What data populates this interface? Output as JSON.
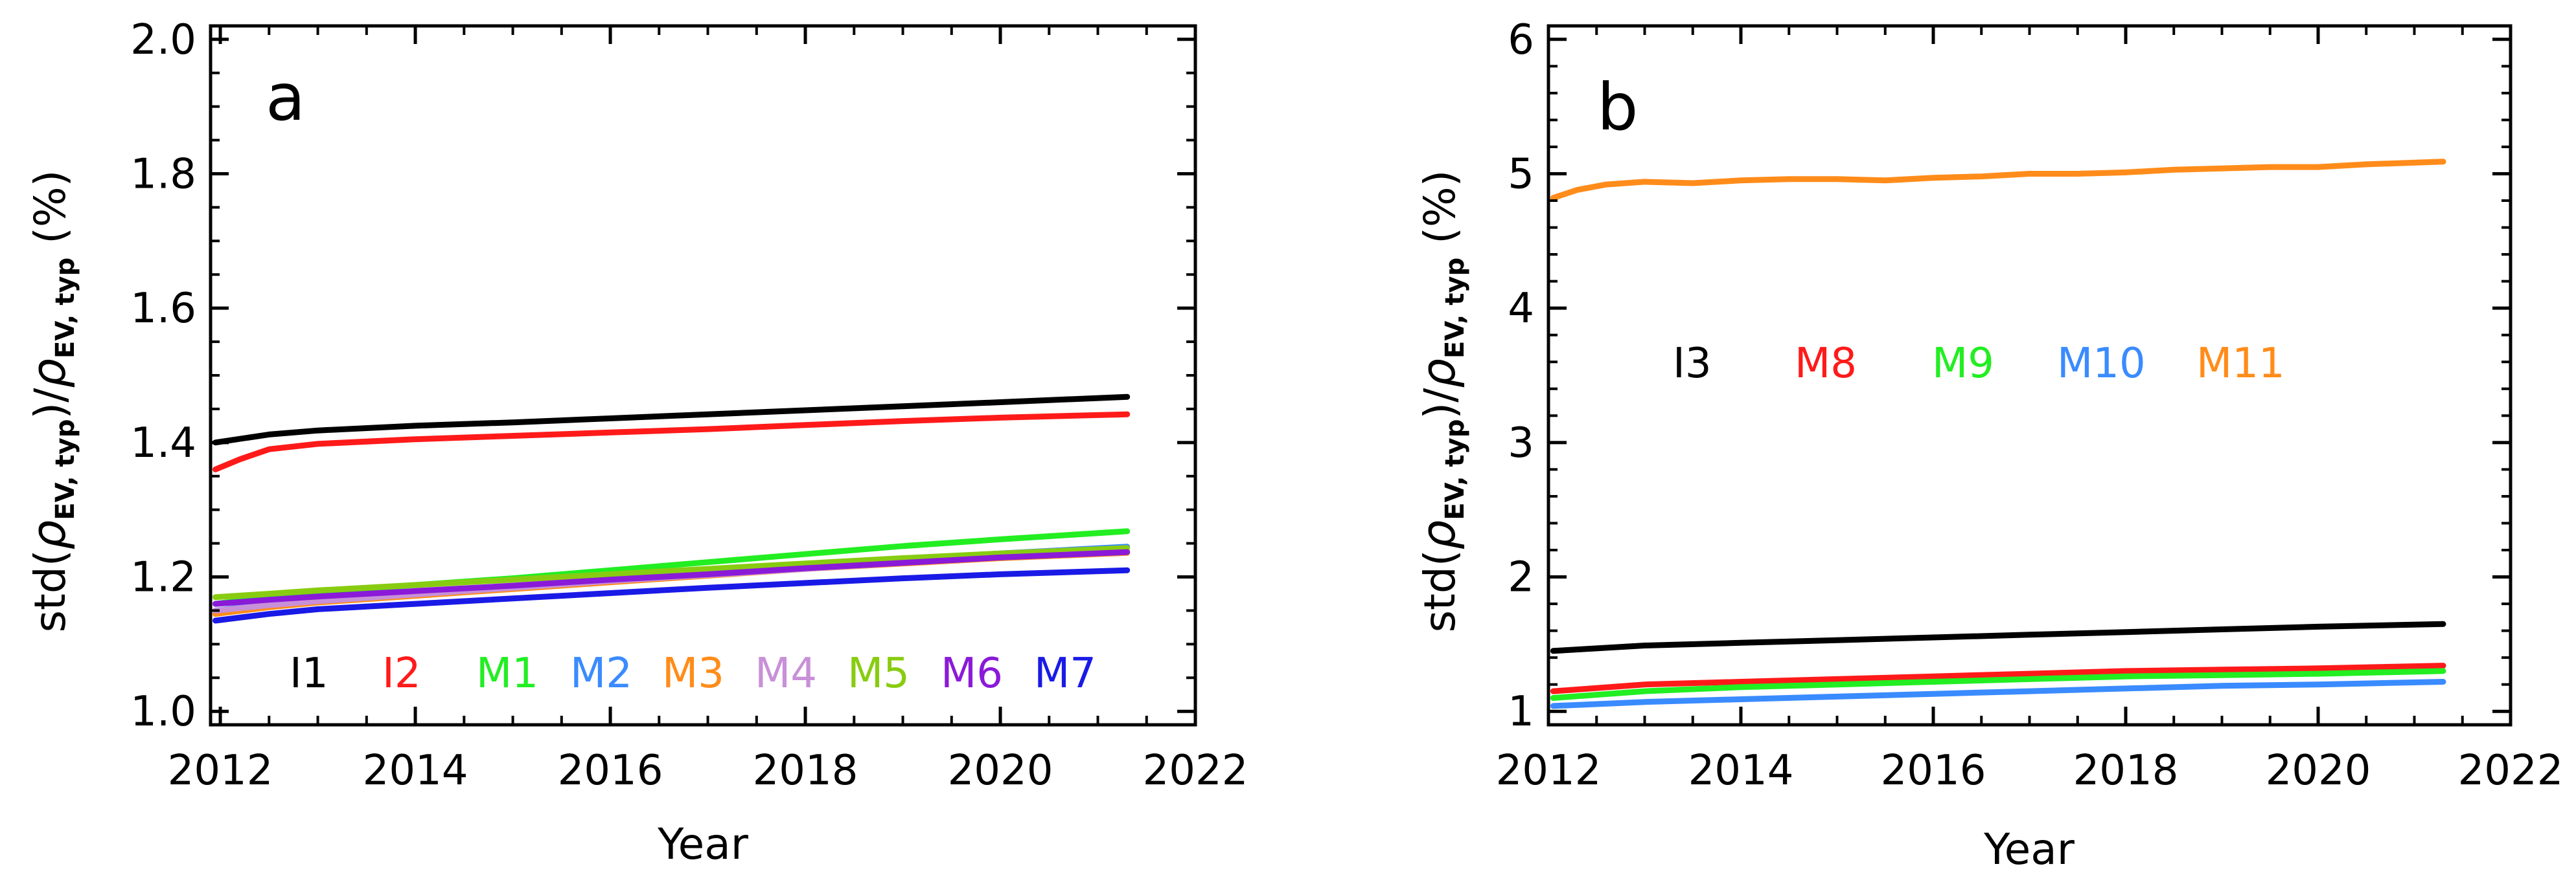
{
  "chart_data": [
    {
      "type": "line",
      "panel_label": "a",
      "xlabel": "Year",
      "ylabel": {
        "prefix": "std(",
        "rho": "ρ",
        "sub": "EV, typ",
        "close": ")/",
        "rho2": "ρ",
        "sub2": "EV, typ",
        "unit": " (%)"
      },
      "xlim": [
        2011.9,
        2022.0
      ],
      "ylim": [
        0.98,
        2.02
      ],
      "xticks": [
        "2012",
        "2014",
        "2016",
        "2018",
        "2020",
        "2022"
      ],
      "yticks": [
        "1.0",
        "1.2",
        "1.4",
        "1.6",
        "1.8",
        "2.0"
      ],
      "series": [
        {
          "name": "I1",
          "color": "#000000",
          "x": [
            2011.95,
            2012.5,
            2013,
            2014,
            2015,
            2016,
            2017,
            2018,
            2019,
            2020,
            2021.3
          ],
          "values": [
            1.4,
            1.412,
            1.418,
            1.425,
            1.43,
            1.436,
            1.442,
            1.448,
            1.454,
            1.46,
            1.468
          ]
        },
        {
          "name": "I2",
          "color": "#ff1a1a",
          "x": [
            2011.95,
            2012.2,
            2012.5,
            2013,
            2014,
            2015,
            2016,
            2017,
            2018,
            2019,
            2020,
            2021.3
          ],
          "values": [
            1.36,
            1.375,
            1.39,
            1.398,
            1.405,
            1.41,
            1.415,
            1.42,
            1.426,
            1.432,
            1.437,
            1.442
          ]
        },
        {
          "name": "M1",
          "color": "#22ee22",
          "x": [
            2011.95,
            2012.5,
            2013,
            2014,
            2015,
            2016,
            2017,
            2018,
            2019,
            2020,
            2021.3
          ],
          "values": [
            1.16,
            1.17,
            1.178,
            1.188,
            1.198,
            1.21,
            1.222,
            1.234,
            1.246,
            1.256,
            1.268
          ]
        },
        {
          "name": "M2",
          "color": "#3a8bff",
          "x": [
            2011.95,
            2012.5,
            2013,
            2014,
            2015,
            2016,
            2017,
            2018,
            2019,
            2020,
            2021.3
          ],
          "values": [
            1.15,
            1.16,
            1.166,
            1.176,
            1.186,
            1.196,
            1.206,
            1.216,
            1.226,
            1.235,
            1.245
          ]
        },
        {
          "name": "M3",
          "color": "#ff8c1a",
          "x": [
            2011.95,
            2012.5,
            2013,
            2014,
            2015,
            2016,
            2017,
            2018,
            2019,
            2020,
            2021.3
          ],
          "values": [
            1.145,
            1.155,
            1.162,
            1.172,
            1.182,
            1.192,
            1.202,
            1.212,
            1.22,
            1.228,
            1.236
          ]
        },
        {
          "name": "M4",
          "color": "#c890d8",
          "x": [
            2011.95,
            2012.5,
            2013,
            2014,
            2015,
            2016,
            2017,
            2018,
            2019,
            2020,
            2021.3
          ],
          "values": [
            1.15,
            1.158,
            1.164,
            1.174,
            1.184,
            1.194,
            1.203,
            1.212,
            1.221,
            1.229,
            1.238
          ]
        },
        {
          "name": "M5",
          "color": "#88cc11",
          "x": [
            2011.95,
            2012.5,
            2013,
            2014,
            2015,
            2016,
            2017,
            2018,
            2019,
            2020,
            2021.3
          ],
          "values": [
            1.17,
            1.175,
            1.18,
            1.188,
            1.196,
            1.204,
            1.212,
            1.22,
            1.228,
            1.235,
            1.243
          ]
        },
        {
          "name": "M6",
          "color": "#8a1ad8",
          "x": [
            2011.95,
            2012.5,
            2013,
            2014,
            2015,
            2016,
            2017,
            2018,
            2019,
            2020,
            2021.3
          ],
          "values": [
            1.16,
            1.166,
            1.171,
            1.179,
            1.187,
            1.196,
            1.204,
            1.213,
            1.221,
            1.229,
            1.237
          ]
        },
        {
          "name": "M7",
          "color": "#1a1ae6",
          "x": [
            2011.95,
            2012.5,
            2013,
            2014,
            2015,
            2016,
            2017,
            2018,
            2019,
            2020,
            2021.3
          ],
          "values": [
            1.135,
            1.145,
            1.152,
            1.16,
            1.168,
            1.176,
            1.184,
            1.191,
            1.198,
            1.204,
            1.21
          ]
        }
      ]
    },
    {
      "type": "line",
      "panel_label": "b",
      "xlabel": "Year",
      "ylabel": {
        "prefix": "std(",
        "rho": "ρ",
        "sub": "EV, typ",
        "close": ")/",
        "rho2": "ρ",
        "sub2": "EV, typ",
        "unit": " (%)"
      },
      "xlim": [
        2012.0,
        2022.0
      ],
      "ylim": [
        0.9,
        6.1
      ],
      "xticks": [
        "2012",
        "2014",
        "2016",
        "2018",
        "2020",
        "2022"
      ],
      "yticks": [
        "1",
        "2",
        "3",
        "4",
        "5",
        "6"
      ],
      "series": [
        {
          "name": "I3",
          "color": "#000000",
          "x": [
            2012.05,
            2013,
            2014,
            2015,
            2016,
            2017,
            2018,
            2019,
            2020,
            2021.3
          ],
          "values": [
            1.45,
            1.49,
            1.51,
            1.53,
            1.55,
            1.57,
            1.59,
            1.61,
            1.63,
            1.65
          ]
        },
        {
          "name": "M8",
          "color": "#ff1a1a",
          "x": [
            2012.05,
            2013,
            2014,
            2015,
            2016,
            2017,
            2018,
            2019,
            2020,
            2021.3
          ],
          "values": [
            1.15,
            1.2,
            1.22,
            1.24,
            1.26,
            1.28,
            1.3,
            1.31,
            1.32,
            1.34
          ]
        },
        {
          "name": "M9",
          "color": "#22ee22",
          "x": [
            2012.05,
            2013,
            2014,
            2015,
            2016,
            2017,
            2018,
            2019,
            2020,
            2021.3
          ],
          "values": [
            1.1,
            1.15,
            1.18,
            1.2,
            1.22,
            1.24,
            1.26,
            1.27,
            1.28,
            1.3
          ]
        },
        {
          "name": "M10",
          "color": "#3a8bff",
          "x": [
            2012.05,
            2013,
            2014,
            2015,
            2016,
            2017,
            2018,
            2019,
            2020,
            2021.3
          ],
          "values": [
            1.04,
            1.07,
            1.09,
            1.11,
            1.13,
            1.15,
            1.17,
            1.19,
            1.2,
            1.22
          ]
        },
        {
          "name": "M11",
          "color": "#ff8c1a",
          "x": [
            2012.05,
            2012.3,
            2012.6,
            2013,
            2013.5,
            2014,
            2014.5,
            2015,
            2015.5,
            2016,
            2016.5,
            2017,
            2017.5,
            2018,
            2018.5,
            2019,
            2019.5,
            2020,
            2020.5,
            2021.3
          ],
          "values": [
            4.82,
            4.88,
            4.92,
            4.94,
            4.93,
            4.95,
            4.96,
            4.96,
            4.95,
            4.97,
            4.98,
            5.0,
            5.0,
            5.01,
            5.03,
            5.04,
            5.05,
            5.05,
            5.07,
            5.09
          ]
        }
      ]
    }
  ]
}
